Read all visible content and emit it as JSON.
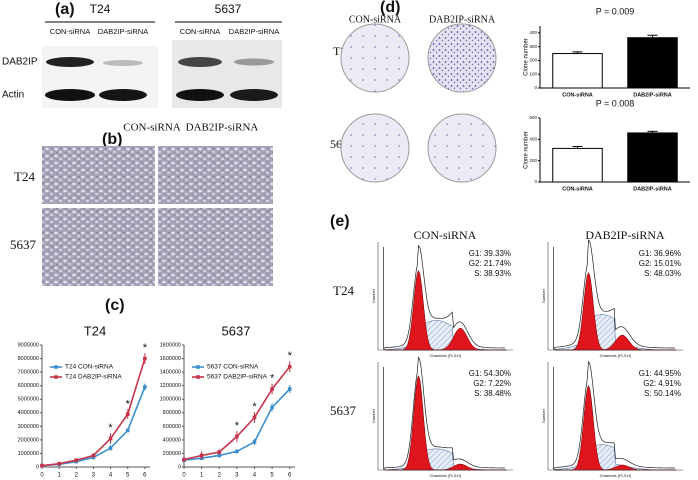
{
  "panel_labels": [
    "(a)",
    "(b)",
    "(c)",
    "(d)",
    "(e)"
  ],
  "western_blot": {
    "cell_lines": [
      "T24",
      "5637"
    ],
    "lanes": [
      "CON-siRNA",
      "DAB2IP-siRNA",
      "CON-siRNA",
      "DAB2IP-siRNA"
    ],
    "rows": [
      "DAB2IP",
      "Actin"
    ]
  },
  "morphology": {
    "columns": [
      "CON-siRNA",
      "DAB2IP-siRNA"
    ],
    "rows": [
      "T24",
      "5637"
    ]
  },
  "colony": {
    "columns": [
      "CON-siRNA",
      "DAB2IP-siRNA"
    ],
    "rows": [
      "T24",
      "5637"
    ]
  },
  "flow_cytometry": {
    "columns": [
      "CON-siRNA",
      "DAB2IP-siRNA"
    ],
    "rows": [
      "T24",
      "5637"
    ],
    "x_label": "Channels (FL3-H)",
    "y_label": "Number",
    "stats": [
      [
        "G1: 39.33%",
        "G2: 21.74%",
        "S: 38.93%"
      ],
      [
        "G1: 36.96%",
        "G2: 15.01%",
        "S: 48.03%"
      ],
      [
        "G1: 54.30%",
        "G2: 7.22%",
        "S: 38.48%"
      ],
      [
        "G1: 44.95%",
        "G2: 4.91%",
        "S: 50.14%"
      ]
    ]
  },
  "chart_data": [
    {
      "type": "line",
      "title": "T24",
      "x": [
        0,
        1,
        2,
        3,
        4,
        5,
        6
      ],
      "xlim": [
        0,
        6.3
      ],
      "xticks": [
        0,
        1,
        2,
        3,
        4,
        5,
        6
      ],
      "ylim": [
        0,
        9000000
      ],
      "yticks": [
        0,
        1000000,
        2000000,
        3000000,
        4000000,
        5000000,
        6000000,
        7000000,
        8000000,
        9000000
      ],
      "legend": "upper left",
      "series": [
        {
          "name": "T24 CON-siRNA",
          "color": "#3b8fd0",
          "values": [
            100000,
            200000,
            400000,
            700000,
            1400000,
            2700000,
            5900000
          ],
          "errors": [
            50000,
            50000,
            80000,
            100000,
            200000,
            150000,
            250000
          ]
        },
        {
          "name": "T24 DAB2IP-siRNA",
          "color": "#c8334a",
          "values": [
            100000,
            250000,
            500000,
            850000,
            2100000,
            3900000,
            8000000
          ],
          "errors": [
            50000,
            50000,
            100000,
            150000,
            400000,
            350000,
            400000
          ]
        }
      ],
      "annotations": [
        {
          "x": 4,
          "text": "*"
        },
        {
          "x": 5,
          "text": "*"
        },
        {
          "x": 6,
          "text": "*"
        }
      ]
    },
    {
      "type": "line",
      "title": "5637",
      "x": [
        0,
        1,
        2,
        3,
        4,
        5,
        6
      ],
      "xlim": [
        0,
        6.3
      ],
      "xticks": [
        0,
        1,
        2,
        3,
        4,
        5,
        6
      ],
      "ylim": [
        0,
        1800000
      ],
      "yticks": [
        0,
        200000,
        400000,
        600000,
        800000,
        1000000,
        1200000,
        1400000,
        1600000,
        1800000
      ],
      "legend": "upper left",
      "series": [
        {
          "name": "5637 CON-siRNA",
          "color": "#3b8fd0",
          "values": [
            100000,
            130000,
            170000,
            230000,
            370000,
            880000,
            1150000
          ],
          "errors": [
            20000,
            30000,
            30000,
            30000,
            50000,
            60000,
            60000
          ]
        },
        {
          "name": "5637 DAB2IP-siRNA",
          "color": "#c8334a",
          "values": [
            110000,
            170000,
            220000,
            450000,
            730000,
            1150000,
            1480000
          ],
          "errors": [
            30000,
            60000,
            40000,
            80000,
            80000,
            80000,
            80000
          ]
        }
      ],
      "annotations": [
        {
          "x": 3,
          "text": "*"
        },
        {
          "x": 4,
          "text": "*"
        },
        {
          "x": 5,
          "text": "*"
        },
        {
          "x": 6,
          "text": "*"
        }
      ]
    },
    {
      "type": "bar",
      "annotation": "P = 0.009",
      "ylabel": "Clone number",
      "categories": [
        "CON-siRNA",
        "DAB2IP-siRNA"
      ],
      "values": [
        250,
        365
      ],
      "errors": [
        12,
        18
      ],
      "colors": [
        "#ffffff",
        "#000000"
      ],
      "ylim": [
        0,
        450
      ],
      "yticks": [
        0,
        100,
        200,
        300,
        400
      ]
    },
    {
      "type": "bar",
      "annotation": "P = 0.008",
      "ylabel": "Clone number",
      "categories": [
        "CON-siRNA",
        "DAB2IP-siRNA"
      ],
      "values": [
        315,
        460
      ],
      "errors": [
        18,
        15
      ],
      "colors": [
        "#ffffff",
        "#000000"
      ],
      "ylim": [
        0,
        600
      ],
      "yticks": [
        0,
        200,
        400,
        600
      ]
    }
  ]
}
